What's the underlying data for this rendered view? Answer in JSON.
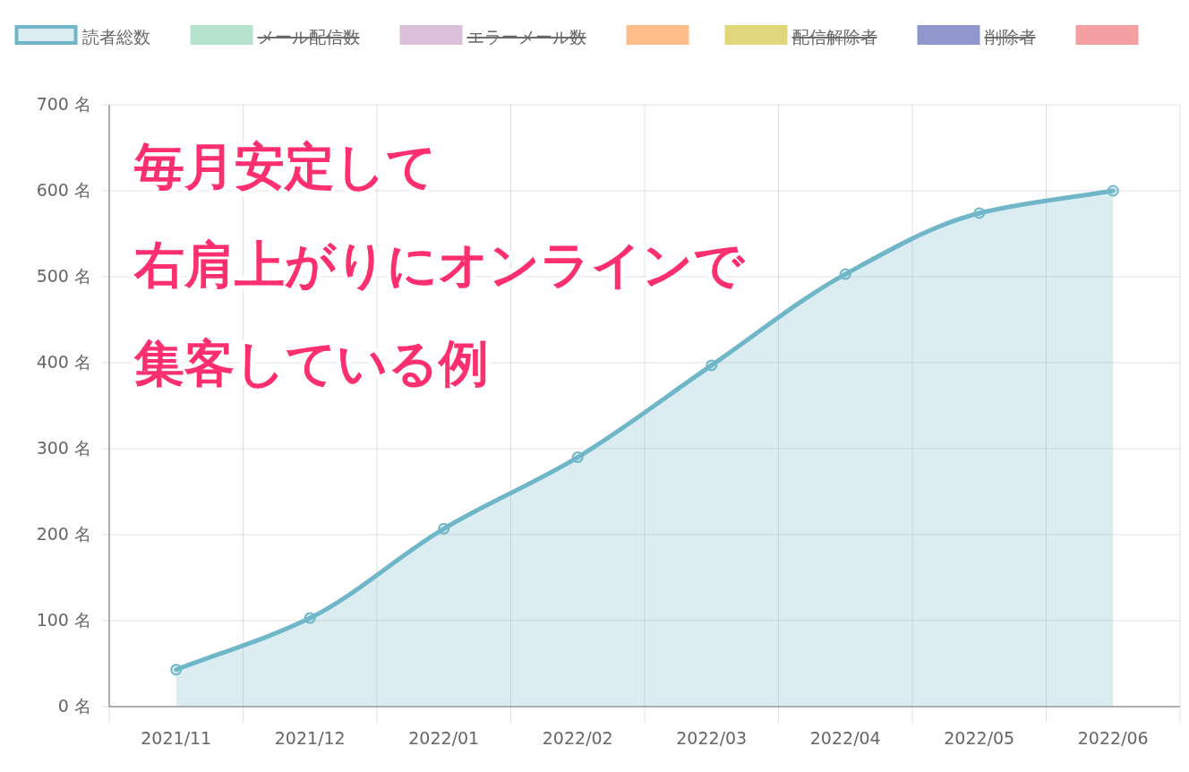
{
  "chart_data": {
    "type": "area",
    "categories": [
      "2021/11",
      "2021/12",
      "2022/01",
      "2022/02",
      "2022/03",
      "2022/04",
      "2022/05",
      "2022/06"
    ],
    "series": [
      {
        "name": "読者総数",
        "color": "#6fb7c8",
        "values": [
          43,
          103,
          207,
          290,
          397,
          503,
          574,
          600
        ]
      },
      {
        "name": "メール配信数",
        "color": "#b5e3cd",
        "values": [
          null,
          null,
          null,
          null,
          null,
          null,
          null,
          null
        ]
      },
      {
        "name": "エラーメール数",
        "color": "#dcbfd9",
        "values": [
          null,
          null,
          null,
          null,
          null,
          null,
          null,
          null
        ]
      },
      {
        "color": "#ffbd8a",
        "values": [
          null,
          null,
          null,
          null,
          null,
          null,
          null,
          null
        ]
      },
      {
        "name": "配信解除者",
        "color": "#e1d67a",
        "values": [
          null,
          null,
          null,
          null,
          null,
          null,
          null,
          null
        ]
      },
      {
        "name": "削除者",
        "color": "#9197cc",
        "values": [
          null,
          null,
          null,
          null,
          null,
          null,
          null,
          null
        ]
      },
      {
        "color": "#f4a0a3",
        "values": [
          null,
          null,
          null,
          null,
          null,
          null,
          null,
          null
        ]
      }
    ],
    "ylim": [
      0,
      700
    ],
    "yticks": [
      {
        "value": 0,
        "label": "0 名"
      },
      {
        "value": 100,
        "label": "100 名"
      },
      {
        "value": 200,
        "label": "200 名"
      },
      {
        "value": 300,
        "label": "300 名"
      },
      {
        "value": 400,
        "label": "400 名"
      },
      {
        "value": 500,
        "label": "500 名"
      },
      {
        "value": 600,
        "label": "600 名"
      },
      {
        "value": 700,
        "label": "700 名"
      }
    ],
    "grid": true,
    "legend": "top",
    "marker": "circle",
    "line_style": "solid",
    "annotations": [
      "毎月安定して",
      "右肩上がりにオンラインで",
      "集客している例"
    ]
  }
}
